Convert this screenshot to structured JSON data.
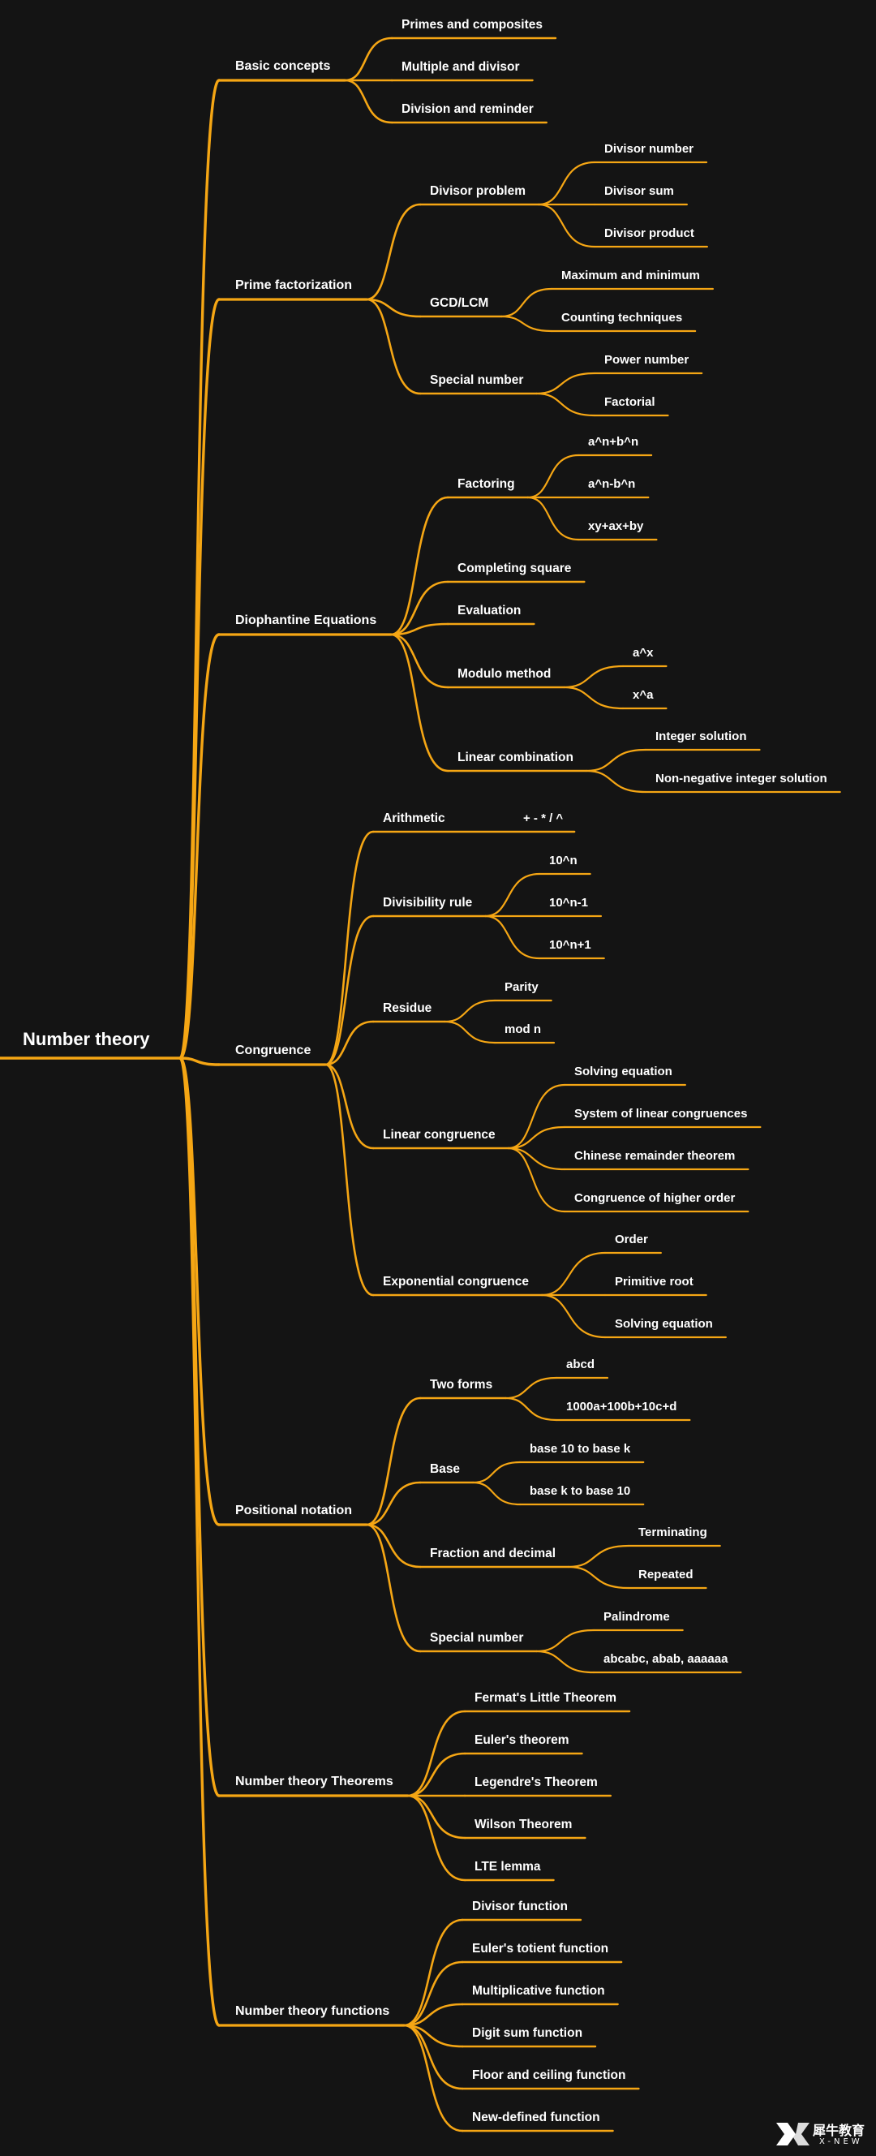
{
  "theme": {
    "background": "#141414",
    "line": "#f5a614",
    "text": "#ffffff"
  },
  "root": "Number theory",
  "branches": [
    {
      "label": "Basic concepts",
      "children": [
        {
          "label": "Primes and composites"
        },
        {
          "label": "Multiple and divisor"
        },
        {
          "label": "Division and reminder"
        }
      ]
    },
    {
      "label": "Prime factorization",
      "children": [
        {
          "label": "Divisor problem",
          "children": [
            {
              "label": "Divisor number"
            },
            {
              "label": "Divisor sum"
            },
            {
              "label": "Divisor product"
            }
          ]
        },
        {
          "label": "GCD/LCM",
          "children": [
            {
              "label": "Maximum and minimum"
            },
            {
              "label": "Counting techniques"
            }
          ]
        },
        {
          "label": "Special number",
          "children": [
            {
              "label": "Power number"
            },
            {
              "label": "Factorial"
            }
          ]
        }
      ]
    },
    {
      "label": "Diophantine Equations",
      "children": [
        {
          "label": "Factoring",
          "children": [
            {
              "label": "a^n+b^n"
            },
            {
              "label": "a^n-b^n"
            },
            {
              "label": "xy+ax+by"
            }
          ]
        },
        {
          "label": "Completing square"
        },
        {
          "label": "Evaluation"
        },
        {
          "label": "Modulo method",
          "children": [
            {
              "label": "a^x"
            },
            {
              "label": "x^a"
            }
          ]
        },
        {
          "label": "Linear combination",
          "children": [
            {
              "label": "Integer solution"
            },
            {
              "label": "Non-negative integer solution"
            }
          ]
        }
      ]
    },
    {
      "label": "Congruence",
      "children": [
        {
          "label": "Arithmetic",
          "note": "+ - * / ^"
        },
        {
          "label": "Divisibility rule",
          "children": [
            {
              "label": "10^n"
            },
            {
              "label": "10^n-1"
            },
            {
              "label": "10^n+1"
            }
          ]
        },
        {
          "label": "Residue",
          "children": [
            {
              "label": "Parity"
            },
            {
              "label": "mod n"
            }
          ]
        },
        {
          "label": "Linear congruence",
          "children": [
            {
              "label": "Solving equation"
            },
            {
              "label": "System of linear congruences"
            },
            {
              "label": "Chinese remainder theorem"
            },
            {
              "label": "Congruence of higher order"
            }
          ]
        },
        {
          "label": "Exponential congruence",
          "children": [
            {
              "label": "Order"
            },
            {
              "label": "Primitive root"
            },
            {
              "label": "Solving equation"
            }
          ]
        }
      ]
    },
    {
      "label": "Positional notation",
      "children": [
        {
          "label": "Two forms",
          "children": [
            {
              "label": "abcd"
            },
            {
              "label": "1000a+100b+10c+d"
            }
          ]
        },
        {
          "label": "Base",
          "children": [
            {
              "label": "base 10 to base k"
            },
            {
              "label": "base k to base 10"
            }
          ]
        },
        {
          "label": "Fraction and decimal",
          "children": [
            {
              "label": "Terminating"
            },
            {
              "label": "Repeated"
            }
          ]
        },
        {
          "label": "Special number",
          "children": [
            {
              "label": "Palindrome"
            },
            {
              "label": "abcabc, abab, aaaaaa"
            }
          ]
        }
      ]
    },
    {
      "label": "Number theory Theorems",
      "children": [
        {
          "label": "Fermat's Little Theorem"
        },
        {
          "label": "Euler's theorem"
        },
        {
          "label": "Legendre's Theorem"
        },
        {
          "label": "Wilson Theorem"
        },
        {
          "label": "LTE lemma"
        }
      ]
    },
    {
      "label": "Number theory functions",
      "children": [
        {
          "label": "Divisor function"
        },
        {
          "label": "Euler's totient function"
        },
        {
          "label": "Multiplicative function"
        },
        {
          "label": "Digit sum function"
        },
        {
          "label": "Floor and ceiling function"
        },
        {
          "label": "New-defined function"
        }
      ]
    }
  ],
  "watermark": {
    "cn": "犀牛教育",
    "en": "X-NEW"
  }
}
